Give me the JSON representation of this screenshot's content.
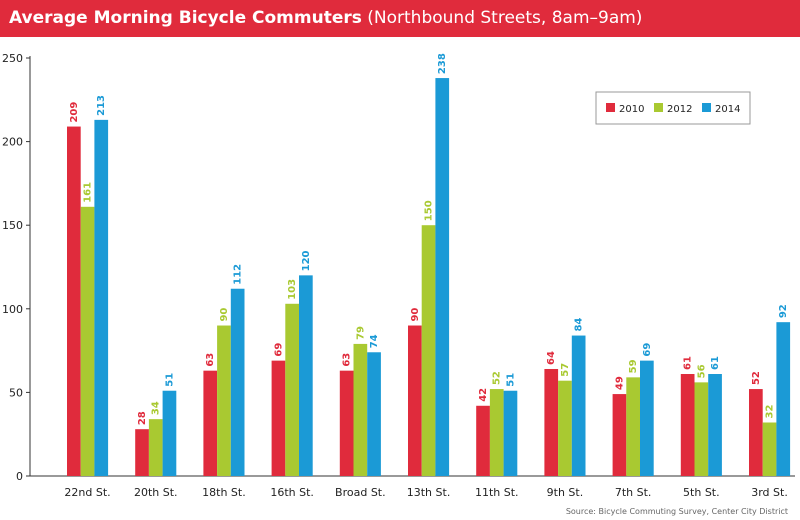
{
  "header": {
    "title": "Average Morning Bicycle Commuters",
    "subtitle": "(Northbound Streets, 8am–9am)"
  },
  "source": "Source: Bicycle Commuting Survey, Center City District",
  "colors": {
    "header_bg": "#e02b3c",
    "series_2010": "#e02b3c",
    "series_2012": "#a9c931",
    "series_2014": "#1b9ad6"
  },
  "chart_data": {
    "type": "bar",
    "title": "Average Morning Bicycle Commuters",
    "subtitle": "(Northbound Streets, 8am–9am)",
    "xlabel": "",
    "ylabel": "",
    "ylim": [
      0,
      250
    ],
    "yticks": [
      0,
      50,
      100,
      150,
      200,
      250
    ],
    "legend_position": "top-right",
    "grid": false,
    "categories": [
      "22nd St.",
      "20th St.",
      "18th St.",
      "16th St.",
      "Broad St.",
      "13th St.",
      "11th St.",
      "9th St.",
      "7th St.",
      "5th St.",
      "3rd St."
    ],
    "series": [
      {
        "name": "2010",
        "color": "#e02b3c",
        "values": [
          209,
          28,
          63,
          69,
          63,
          90,
          42,
          64,
          49,
          61,
          52
        ]
      },
      {
        "name": "2012",
        "color": "#a9c931",
        "values": [
          161,
          34,
          90,
          103,
          79,
          150,
          52,
          57,
          59,
          56,
          32
        ]
      },
      {
        "name": "2014",
        "color": "#1b9ad6",
        "values": [
          213,
          51,
          112,
          120,
          74,
          238,
          51,
          84,
          69,
          61,
          92
        ]
      }
    ]
  }
}
